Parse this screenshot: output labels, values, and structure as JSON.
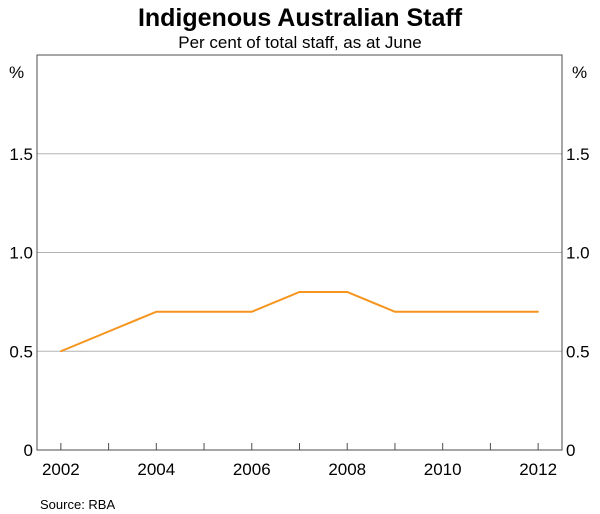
{
  "chart_data": {
    "type": "line",
    "title": "Indigenous Australian Staff",
    "subtitle": "Per cent of total staff, as at June",
    "y_unit_left": "%",
    "y_unit_right": "%",
    "x": [
      2002,
      2003,
      2004,
      2005,
      2006,
      2007,
      2008,
      2009,
      2010,
      2011,
      2012
    ],
    "series": [
      {
        "values": [
          0.5,
          0.6,
          0.7,
          0.7,
          0.7,
          0.8,
          0.8,
          0.7,
          0.7,
          0.7,
          0.7
        ],
        "color": "#f7941d"
      }
    ],
    "x_tick_labels": [
      "2002",
      "2004",
      "2006",
      "2008",
      "2010",
      "2012"
    ],
    "y_ticks": [
      0,
      0.5,
      1.0,
      1.5,
      2.0
    ],
    "y_tick_labels": [
      "0",
      "0.5",
      "1.0",
      "1.5"
    ],
    "ylim": [
      0,
      2
    ],
    "xlim": [
      2001.5,
      2012.5
    ],
    "grid": true,
    "source": "Source: RBA",
    "colors": {
      "line": "#f7941d",
      "grid": "#b3b3b3",
      "frame": "#4d4d4d"
    }
  }
}
